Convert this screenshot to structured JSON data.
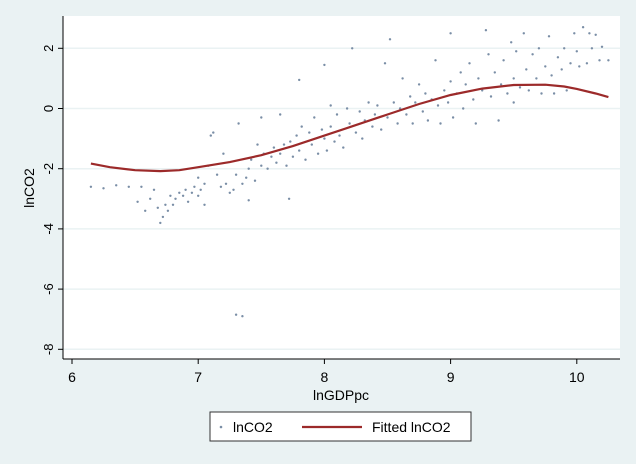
{
  "chart_data": {
    "type": "scatter",
    "xlabel": "lnGDPpc",
    "ylabel": "lnCO2",
    "xlim": [
      5.93,
      10.35
    ],
    "ylim": [
      -8.4,
      3.1
    ],
    "xticks": [
      6,
      7,
      8,
      9,
      10
    ],
    "yticks": [
      2,
      0,
      -2,
      -4,
      -6,
      -8
    ],
    "grid": true,
    "legend_position": "bottom",
    "colors": {
      "scatter": "#7a8ea6",
      "fit": "#9c2a2a",
      "background": "#eaf2f3",
      "plot": "#ffffff",
      "grid": "#eaf2f3"
    },
    "series": [
      {
        "name": "lnCO2",
        "kind": "scatter",
        "points": [
          [
            6.15,
            -2.6
          ],
          [
            6.25,
            -2.65
          ],
          [
            6.35,
            -2.55
          ],
          [
            6.45,
            -2.6
          ],
          [
            6.55,
            -2.6
          ],
          [
            6.52,
            -3.1
          ],
          [
            6.58,
            -3.4
          ],
          [
            6.62,
            -3.0
          ],
          [
            6.65,
            -2.7
          ],
          [
            6.68,
            -3.3
          ],
          [
            6.7,
            -3.8
          ],
          [
            6.72,
            -3.6
          ],
          [
            6.74,
            -3.2
          ],
          [
            6.76,
            -3.4
          ],
          [
            6.78,
            -2.9
          ],
          [
            6.8,
            -3.2
          ],
          [
            6.82,
            -3.0
          ],
          [
            6.85,
            -2.8
          ],
          [
            6.88,
            -2.9
          ],
          [
            6.9,
            -2.7
          ],
          [
            6.92,
            -3.1
          ],
          [
            6.95,
            -2.8
          ],
          [
            6.97,
            -2.6
          ],
          [
            7.0,
            -2.9
          ],
          [
            7.0,
            -2.3
          ],
          [
            7.02,
            -2.7
          ],
          [
            7.05,
            -3.2
          ],
          [
            7.05,
            -2.5
          ],
          [
            7.08,
            -1.9
          ],
          [
            7.1,
            -0.9
          ],
          [
            7.12,
            -0.8
          ],
          [
            7.15,
            -2.2
          ],
          [
            7.18,
            -2.6
          ],
          [
            7.2,
            -1.5
          ],
          [
            7.22,
            -2.5
          ],
          [
            7.25,
            -2.8
          ],
          [
            7.28,
            -2.7
          ],
          [
            7.3,
            -2.2
          ],
          [
            7.3,
            -6.85
          ],
          [
            7.35,
            -6.9
          ],
          [
            7.32,
            -0.5
          ],
          [
            7.35,
            -2.5
          ],
          [
            7.38,
            -2.3
          ],
          [
            7.4,
            -2.0
          ],
          [
            7.4,
            -3.05
          ],
          [
            7.42,
            -1.7
          ],
          [
            7.45,
            -2.4
          ],
          [
            7.47,
            -1.2
          ],
          [
            7.5,
            -1.9
          ],
          [
            7.5,
            -0.3
          ],
          [
            7.52,
            -1.5
          ],
          [
            7.55,
            -2.0
          ],
          [
            7.58,
            -1.6
          ],
          [
            7.6,
            -1.3
          ],
          [
            7.62,
            -1.8
          ],
          [
            7.65,
            -0.2
          ],
          [
            7.65,
            -1.5
          ],
          [
            7.68,
            -1.2
          ],
          [
            7.7,
            -1.9
          ],
          [
            7.72,
            -3.0
          ],
          [
            7.73,
            -1.1
          ],
          [
            7.75,
            -1.6
          ],
          [
            7.78,
            -0.9
          ],
          [
            7.8,
            0.95
          ],
          [
            7.8,
            -1.4
          ],
          [
            7.82,
            -0.6
          ],
          [
            7.85,
            -1.7
          ],
          [
            7.88,
            -0.8
          ],
          [
            7.9,
            -1.2
          ],
          [
            7.92,
            -0.3
          ],
          [
            7.95,
            -1.5
          ],
          [
            7.98,
            -0.7
          ],
          [
            8.0,
            1.45
          ],
          [
            8.0,
            -1.0
          ],
          [
            8.02,
            -1.4
          ],
          [
            8.05,
            0.1
          ],
          [
            8.05,
            -0.6
          ],
          [
            8.08,
            -1.1
          ],
          [
            8.1,
            -0.2
          ],
          [
            8.12,
            -0.9
          ],
          [
            8.15,
            -1.3
          ],
          [
            8.18,
            0.0
          ],
          [
            8.2,
            -0.5
          ],
          [
            8.22,
            2.0
          ],
          [
            8.25,
            -0.8
          ],
          [
            8.28,
            -0.1
          ],
          [
            8.3,
            -1.0
          ],
          [
            8.32,
            -0.4
          ],
          [
            8.35,
            0.2
          ],
          [
            8.38,
            -0.6
          ],
          [
            8.4,
            -0.2
          ],
          [
            8.42,
            0.1
          ],
          [
            8.45,
            -0.7
          ],
          [
            8.48,
            1.5
          ],
          [
            8.5,
            -0.3
          ],
          [
            8.52,
            2.3
          ],
          [
            8.55,
            0.2
          ],
          [
            8.58,
            -0.5
          ],
          [
            8.6,
            0.0
          ],
          [
            8.62,
            1.0
          ],
          [
            8.65,
            -0.2
          ],
          [
            8.68,
            0.4
          ],
          [
            8.7,
            -0.5
          ],
          [
            8.72,
            0.2
          ],
          [
            8.75,
            0.8
          ],
          [
            8.78,
            -0.1
          ],
          [
            8.8,
            0.5
          ],
          [
            8.82,
            -0.4
          ],
          [
            8.85,
            0.3
          ],
          [
            8.88,
            1.6
          ],
          [
            8.9,
            0.1
          ],
          [
            8.92,
            -0.5
          ],
          [
            8.95,
            0.6
          ],
          [
            8.98,
            0.2
          ],
          [
            9.0,
            2.5
          ],
          [
            9.0,
            0.9
          ],
          [
            9.02,
            -0.3
          ],
          [
            9.05,
            0.5
          ],
          [
            9.08,
            1.2
          ],
          [
            9.1,
            0.0
          ],
          [
            9.12,
            0.8
          ],
          [
            9.15,
            1.5
          ],
          [
            9.18,
            0.3
          ],
          [
            9.2,
            -0.5
          ],
          [
            9.22,
            1.0
          ],
          [
            9.25,
            0.6
          ],
          [
            9.28,
            2.6
          ],
          [
            9.3,
            1.8
          ],
          [
            9.32,
            0.4
          ],
          [
            9.35,
            1.2
          ],
          [
            9.38,
            -0.4
          ],
          [
            9.4,
            0.8
          ],
          [
            9.42,
            1.6
          ],
          [
            9.45,
            0.5
          ],
          [
            9.48,
            2.2
          ],
          [
            9.5,
            1.0
          ],
          [
            9.5,
            0.2
          ],
          [
            9.52,
            1.9
          ],
          [
            9.55,
            0.7
          ],
          [
            9.58,
            2.5
          ],
          [
            9.6,
            1.3
          ],
          [
            9.62,
            0.6
          ],
          [
            9.65,
            1.8
          ],
          [
            9.68,
            1.0
          ],
          [
            9.7,
            2.0
          ],
          [
            9.72,
            0.5
          ],
          [
            9.75,
            1.4
          ],
          [
            9.78,
            2.4
          ],
          [
            9.8,
            1.1
          ],
          [
            9.82,
            0.5
          ],
          [
            9.85,
            1.7
          ],
          [
            9.88,
            1.3
          ],
          [
            9.9,
            2.0
          ],
          [
            9.92,
            0.6
          ],
          [
            9.95,
            1.5
          ],
          [
            9.98,
            2.5
          ],
          [
            10.0,
            1.9
          ],
          [
            10.02,
            1.4
          ],
          [
            10.05,
            2.7
          ],
          [
            10.08,
            1.5
          ],
          [
            10.1,
            2.5
          ],
          [
            10.12,
            2.0
          ],
          [
            10.15,
            2.45
          ],
          [
            10.18,
            1.6
          ],
          [
            10.2,
            2.05
          ],
          [
            10.25,
            1.6
          ]
        ]
      },
      {
        "name": "Fitted lnCO2",
        "kind": "line",
        "points": [
          [
            6.15,
            -1.83
          ],
          [
            6.3,
            -1.95
          ],
          [
            6.5,
            -2.05
          ],
          [
            6.7,
            -2.08
          ],
          [
            6.85,
            -2.05
          ],
          [
            7.0,
            -1.95
          ],
          [
            7.25,
            -1.78
          ],
          [
            7.5,
            -1.55
          ],
          [
            7.75,
            -1.25
          ],
          [
            8.0,
            -0.9
          ],
          [
            8.25,
            -0.55
          ],
          [
            8.5,
            -0.2
          ],
          [
            8.75,
            0.15
          ],
          [
            9.0,
            0.45
          ],
          [
            9.25,
            0.66
          ],
          [
            9.5,
            0.78
          ],
          [
            9.75,
            0.79
          ],
          [
            9.9,
            0.73
          ],
          [
            10.0,
            0.65
          ],
          [
            10.15,
            0.5
          ],
          [
            10.25,
            0.38
          ]
        ]
      }
    ],
    "legend": [
      "lnCO2",
      "Fitted lnCO2"
    ]
  }
}
